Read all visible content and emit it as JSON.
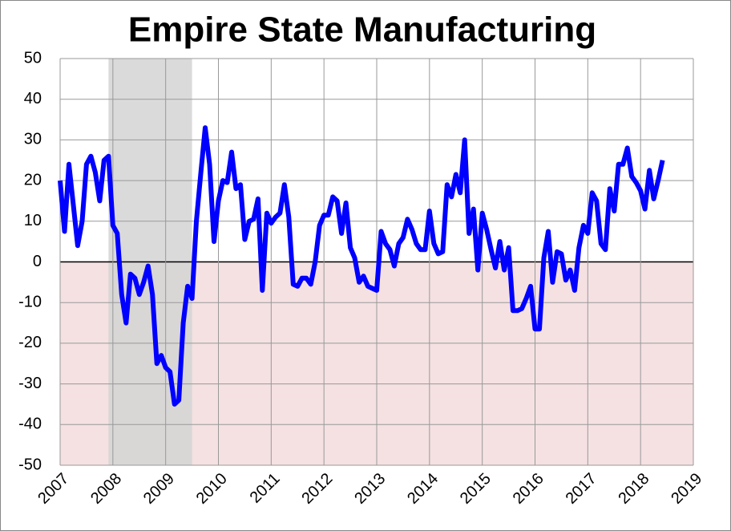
{
  "chart_data": {
    "type": "line",
    "title": "Empire State Manufacturing",
    "x": [
      2007,
      2007.083,
      2007.167,
      2007.25,
      2007.333,
      2007.417,
      2007.5,
      2007.583,
      2007.667,
      2007.75,
      2007.833,
      2007.917,
      2008,
      2008.083,
      2008.167,
      2008.25,
      2008.333,
      2008.417,
      2008.5,
      2008.583,
      2008.667,
      2008.75,
      2008.833,
      2008.917,
      2009,
      2009.083,
      2009.167,
      2009.25,
      2009.333,
      2009.417,
      2009.5,
      2009.583,
      2009.667,
      2009.75,
      2009.833,
      2009.917,
      2010,
      2010.083,
      2010.167,
      2010.25,
      2010.333,
      2010.417,
      2010.5,
      2010.583,
      2010.667,
      2010.75,
      2010.833,
      2010.917,
      2011,
      2011.083,
      2011.167,
      2011.25,
      2011.333,
      2011.417,
      2011.5,
      2011.583,
      2011.667,
      2011.75,
      2011.833,
      2011.917,
      2012,
      2012.083,
      2012.167,
      2012.25,
      2012.333,
      2012.417,
      2012.5,
      2012.583,
      2012.667,
      2012.75,
      2012.833,
      2012.917,
      2013,
      2013.083,
      2013.167,
      2013.25,
      2013.333,
      2013.417,
      2013.5,
      2013.583,
      2013.667,
      2013.75,
      2013.833,
      2013.917,
      2014,
      2014.083,
      2014.167,
      2014.25,
      2014.333,
      2014.417,
      2014.5,
      2014.583,
      2014.667,
      2014.75,
      2014.833,
      2014.917,
      2015,
      2015.083,
      2015.167,
      2015.25,
      2015.333,
      2015.417,
      2015.5,
      2015.583,
      2015.667,
      2015.75,
      2015.833,
      2015.917,
      2016,
      2016.083,
      2016.167,
      2016.25,
      2016.333,
      2016.417,
      2016.5,
      2016.583,
      2016.667,
      2016.75,
      2016.833,
      2016.917,
      2017,
      2017.083,
      2017.167,
      2017.25,
      2017.333,
      2017.417,
      2017.5,
      2017.583,
      2017.667,
      2017.75,
      2017.833,
      2017.917,
      2018,
      2018.083,
      2018.167,
      2018.25,
      2018.333,
      2018.417
    ],
    "values": [
      20,
      7.5,
      24,
      14,
      4,
      10,
      24,
      26,
      22,
      15,
      25,
      26,
      9,
      7,
      -8,
      -15,
      -3,
      -4,
      -8,
      -5,
      -1,
      -8,
      -25,
      -23,
      -26,
      -27,
      -35,
      -34,
      -15,
      -6,
      -9,
      10,
      22,
      33,
      24,
      5,
      15,
      20,
      19.5,
      27,
      18,
      19,
      5.5,
      10,
      10.5,
      15.5,
      -7,
      12,
      9.5,
      11,
      12,
      19,
      11,
      -5.5,
      -6,
      -4,
      -4,
      -5.5,
      0,
      9,
      11.5,
      11.5,
      16,
      15,
      7,
      14.5,
      3.5,
      1,
      -5,
      -3.5,
      -6,
      -6.5,
      -7,
      7.5,
      4.5,
      3,
      -1,
      4.5,
      6,
      10.5,
      8,
      4.5,
      3,
      3,
      12.5,
      4.5,
      2,
      2.5,
      19,
      16,
      21.5,
      17,
      30,
      7,
      13,
      -2,
      12,
      8,
      3,
      -1.5,
      5,
      -2,
      3.5,
      -12,
      -12,
      -11.5,
      -9,
      -6,
      -16.5,
      -16.5,
      1,
      7.5,
      -5,
      2.5,
      2,
      -4.5,
      -2,
      -7,
      3.5,
      9,
      7,
      17,
      15,
      4.5,
      3,
      18,
      12.5,
      24,
      24,
      28,
      21,
      19.5,
      17.5,
      13,
      22.5,
      15.5,
      20,
      25
    ],
    "color": "#0000ff",
    "xlim": [
      2007,
      2019
    ],
    "xticks": [
      2007,
      2008,
      2009,
      2010,
      2011,
      2012,
      2013,
      2014,
      2015,
      2016,
      2017,
      2018,
      2019
    ],
    "ylim": [
      -50,
      50
    ],
    "yticks": [
      50,
      40,
      30,
      20,
      10,
      0,
      -10,
      -20,
      -30,
      -40,
      -50
    ],
    "grid": true,
    "recession": [
      2007.917,
      2009.5
    ],
    "recession_color": "#d3d3d3",
    "negative_fill": "#f5e1e2"
  }
}
